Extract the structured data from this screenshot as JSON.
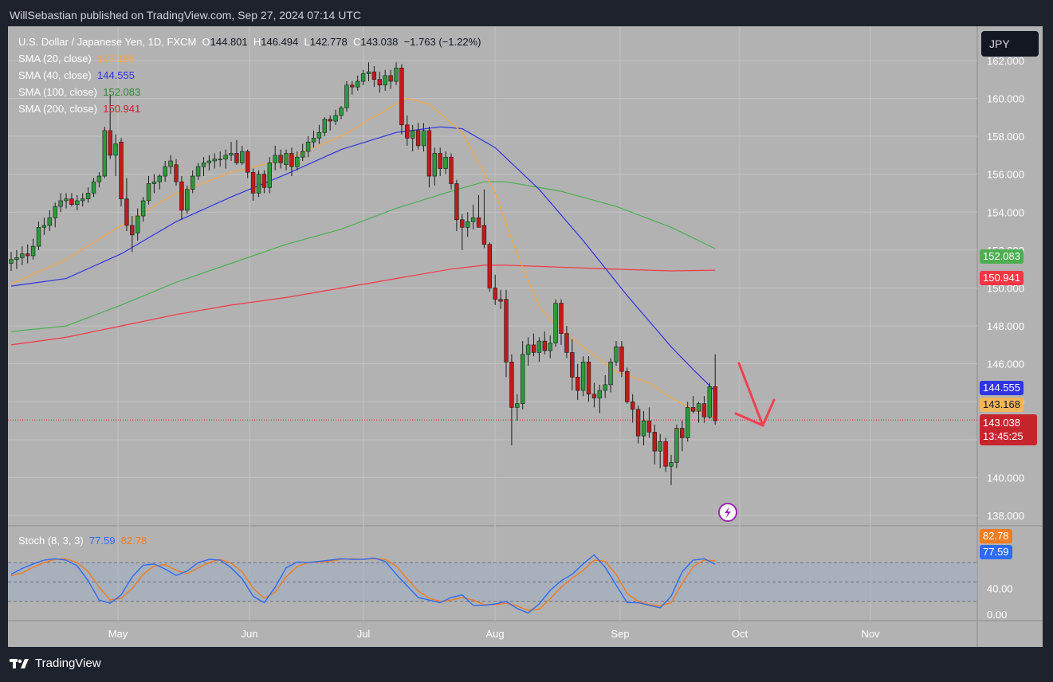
{
  "header": {
    "published": "WillSebastian published on TradingView.com, Sep 27, 2024 07:14 UTC"
  },
  "currency_button": "JPY",
  "legend": {
    "symbol": "U.S. Dollar / Japanese Yen, 1D, FXCM",
    "open_label": "O",
    "open": "144.801",
    "high_label": "H",
    "high": "146.494",
    "low_label": "L",
    "low": "142.778",
    "close_label": "C",
    "close": "143.038",
    "change": "−1.763 (−1.22%)",
    "sma20_label": "SMA (20, close)",
    "sma20": "143.168",
    "sma40_label": "SMA (40, close)",
    "sma40": "144.555",
    "sma100_label": "SMA (100, close)",
    "sma100": "152.083",
    "sma200_label": "SMA (200, close)",
    "sma200": "150.941"
  },
  "stoch": {
    "label": "Stoch (8, 3, 3)",
    "k": "77.59",
    "d": "82.78"
  },
  "price_badges": {
    "sma100": "152.083",
    "sma200": "150.941",
    "sma40": "144.555",
    "sma20": "143.168",
    "last": "143.038",
    "countdown": "13:45:25"
  },
  "footer": {
    "brand": "TradingView"
  },
  "colors": {
    "sma20": "#f5a742",
    "sma40": "#2f35e0",
    "sma100": "#4caf50",
    "sma200": "#f23645",
    "up": "#2e9a3b",
    "down": "#c21a1a",
    "stoch_k": "#2f6bf2",
    "stoch_d": "#f07c1f",
    "arrow": "#f04050"
  },
  "chart_data": {
    "type": "candlestick",
    "y_ticks": [
      "162.000",
      "160.000",
      "158.000",
      "156.000",
      "154.000",
      "152.000",
      "150.000",
      "148.000",
      "146.000",
      "144.000",
      "142.000",
      "140.000",
      "138.000"
    ],
    "ylim": [
      137.5,
      163.8
    ],
    "x_ticks": [
      "May",
      "Jun",
      "Jul",
      "Aug",
      "Sep",
      "Oct",
      "Nov"
    ],
    "candles": [
      [
        151.3,
        151.9,
        150.9,
        151.5
      ],
      [
        151.5,
        152.0,
        151.0,
        151.6
      ],
      [
        151.6,
        152.2,
        151.2,
        151.8
      ],
      [
        151.8,
        152.3,
        151.3,
        151.7
      ],
      [
        151.7,
        152.6,
        151.5,
        152.2
      ],
      [
        152.2,
        153.5,
        152.0,
        153.2
      ],
      [
        153.2,
        153.7,
        152.8,
        153.3
      ],
      [
        153.3,
        154.1,
        153.0,
        153.7
      ],
      [
        153.7,
        154.5,
        153.2,
        154.3
      ],
      [
        154.3,
        155.0,
        154.0,
        154.6
      ],
      [
        154.6,
        155.0,
        154.2,
        154.7
      ],
      [
        154.7,
        155.0,
        154.3,
        154.4
      ],
      [
        154.4,
        154.9,
        154.1,
        154.6
      ],
      [
        154.6,
        155.0,
        154.3,
        154.7
      ],
      [
        154.7,
        155.3,
        154.5,
        155.0
      ],
      [
        155.0,
        155.8,
        154.8,
        155.6
      ],
      [
        155.6,
        156.1,
        155.3,
        155.9
      ],
      [
        155.9,
        158.5,
        155.8,
        158.3
      ],
      [
        158.3,
        160.2,
        156.8,
        157.0
      ],
      [
        157.0,
        158.1,
        155.9,
        157.6
      ],
      [
        157.7,
        157.9,
        154.3,
        154.7
      ],
      [
        154.7,
        155.8,
        153.0,
        153.3
      ],
      [
        153.3,
        153.8,
        151.9,
        152.8
      ],
      [
        152.9,
        154.2,
        152.5,
        153.8
      ],
      [
        153.8,
        154.8,
        153.5,
        154.6
      ],
      [
        154.6,
        155.9,
        154.4,
        155.5
      ],
      [
        155.5,
        156.0,
        155.0,
        155.6
      ],
      [
        155.6,
        156.0,
        155.2,
        155.9
      ],
      [
        155.9,
        156.7,
        155.6,
        156.4
      ],
      [
        156.4,
        157.0,
        156.0,
        156.7
      ],
      [
        156.5,
        156.8,
        155.4,
        155.6
      ],
      [
        155.6,
        155.9,
        153.6,
        154.1
      ],
      [
        154.1,
        155.4,
        153.9,
        155.2
      ],
      [
        155.2,
        156.2,
        155.0,
        155.9
      ],
      [
        155.9,
        156.6,
        155.7,
        156.4
      ],
      [
        156.4,
        156.9,
        155.9,
        156.6
      ],
      [
        156.6,
        157.0,
        156.2,
        156.7
      ],
      [
        156.7,
        157.1,
        156.3,
        156.8
      ],
      [
        156.8,
        157.2,
        156.4,
        156.8
      ],
      [
        156.8,
        157.3,
        156.3,
        157.0
      ],
      [
        157.0,
        157.7,
        156.7,
        157.1
      ],
      [
        157.1,
        157.8,
        156.5,
        156.6
      ],
      [
        156.6,
        157.5,
        156.5,
        157.2
      ],
      [
        157.2,
        157.3,
        155.8,
        156.1
      ],
      [
        156.1,
        156.3,
        154.6,
        155.0
      ],
      [
        155.0,
        156.2,
        154.8,
        156.0
      ],
      [
        156.0,
        156.2,
        155.0,
        155.3
      ],
      [
        155.3,
        156.9,
        155.0,
        156.6
      ],
      [
        156.6,
        157.5,
        156.2,
        157.0
      ],
      [
        157.0,
        157.3,
        156.3,
        156.6
      ],
      [
        156.5,
        157.3,
        156.2,
        157.1
      ],
      [
        157.1,
        157.4,
        155.9,
        156.4
      ],
      [
        156.4,
        157.2,
        156.2,
        156.9
      ],
      [
        156.9,
        157.6,
        156.7,
        157.2
      ],
      [
        157.2,
        158.0,
        156.9,
        157.7
      ],
      [
        157.7,
        158.3,
        157.4,
        157.9
      ],
      [
        157.9,
        158.6,
        157.6,
        158.2
      ],
      [
        158.2,
        159.0,
        158.0,
        158.9
      ],
      [
        158.9,
        159.1,
        158.3,
        158.8
      ],
      [
        158.8,
        159.4,
        158.6,
        159.1
      ],
      [
        159.1,
        159.6,
        158.9,
        159.5
      ],
      [
        159.5,
        160.9,
        159.3,
        160.7
      ],
      [
        160.7,
        160.9,
        160.2,
        160.6
      ],
      [
        160.6,
        161.2,
        160.4,
        160.9
      ],
      [
        160.9,
        161.5,
        160.7,
        161.3
      ],
      [
        161.3,
        161.9,
        160.9,
        161.4
      ],
      [
        161.4,
        161.7,
        160.6,
        161.0
      ],
      [
        161.0,
        161.4,
        160.3,
        160.7
      ],
      [
        160.7,
        161.5,
        160.4,
        161.2
      ],
      [
        161.2,
        161.5,
        160.5,
        160.9
      ],
      [
        160.9,
        161.9,
        160.7,
        161.6
      ],
      [
        161.6,
        161.8,
        158.1,
        158.6
      ],
      [
        158.6,
        159.1,
        157.5,
        157.9
      ],
      [
        157.9,
        158.6,
        157.2,
        158.3
      ],
      [
        158.3,
        158.7,
        157.3,
        157.5
      ],
      [
        157.5,
        158.7,
        157.2,
        158.3
      ],
      [
        158.3,
        158.5,
        155.3,
        155.9
      ],
      [
        155.9,
        157.4,
        155.4,
        157.1
      ],
      [
        157.1,
        157.4,
        155.9,
        156.3
      ],
      [
        156.3,
        157.2,
        156.0,
        156.9
      ],
      [
        156.9,
        157.1,
        155.2,
        155.5
      ],
      [
        155.5,
        155.7,
        153.0,
        153.6
      ],
      [
        153.6,
        153.9,
        152.0,
        153.2
      ],
      [
        153.2,
        154.0,
        152.7,
        153.5
      ],
      [
        153.5,
        154.4,
        153.1,
        153.7
      ],
      [
        153.7,
        154.9,
        153.2,
        153.2
      ],
      [
        153.3,
        155.2,
        152.1,
        152.3
      ],
      [
        152.3,
        152.4,
        149.8,
        150.0
      ],
      [
        150.0,
        150.7,
        149.1,
        149.4
      ],
      [
        149.4,
        149.9,
        148.9,
        149.3
      ],
      [
        149.4,
        149.9,
        145.3,
        146.1
      ],
      [
        146.1,
        146.5,
        141.7,
        143.7
      ],
      [
        143.7,
        144.4,
        143.0,
        143.9
      ],
      [
        143.9,
        147.2,
        143.6,
        146.5
      ],
      [
        146.5,
        147.4,
        145.9,
        147.0
      ],
      [
        147.0,
        147.6,
        146.4,
        146.6
      ],
      [
        146.6,
        147.4,
        146.1,
        147.2
      ],
      [
        147.2,
        147.7,
        146.5,
        146.7
      ],
      [
        146.7,
        147.5,
        146.3,
        147.1
      ],
      [
        147.1,
        149.4,
        146.9,
        149.2
      ],
      [
        149.2,
        149.4,
        147.0,
        147.6
      ],
      [
        147.6,
        148.0,
        146.3,
        146.6
      ],
      [
        146.6,
        147.3,
        144.6,
        145.3
      ],
      [
        145.3,
        146.0,
        144.1,
        144.6
      ],
      [
        144.6,
        146.4,
        144.3,
        146.1
      ],
      [
        146.1,
        146.4,
        144.0,
        144.4
      ],
      [
        144.4,
        145.0,
        143.7,
        144.2
      ],
      [
        144.2,
        144.9,
        143.4,
        144.6
      ],
      [
        144.6,
        145.4,
        144.2,
        144.9
      ],
      [
        144.9,
        146.3,
        144.5,
        146.1
      ],
      [
        146.1,
        147.2,
        145.9,
        146.9
      ],
      [
        146.9,
        147.2,
        145.3,
        145.6
      ],
      [
        145.6,
        145.8,
        143.9,
        144.0
      ],
      [
        144.0,
        144.4,
        142.9,
        143.6
      ],
      [
        143.6,
        143.8,
        141.8,
        142.2
      ],
      [
        142.2,
        143.5,
        141.7,
        143.0
      ],
      [
        143.0,
        143.7,
        142.1,
        142.4
      ],
      [
        142.4,
        142.8,
        140.7,
        141.4
      ],
      [
        141.4,
        142.3,
        140.5,
        141.9
      ],
      [
        141.9,
        142.1,
        140.3,
        140.6
      ],
      [
        140.6,
        141.2,
        139.6,
        140.8
      ],
      [
        140.8,
        142.8,
        140.5,
        142.6
      ],
      [
        142.6,
        143.0,
        141.4,
        142.1
      ],
      [
        142.1,
        144.0,
        141.9,
        143.7
      ],
      [
        143.7,
        144.3,
        143.4,
        143.5
      ],
      [
        143.5,
        144.0,
        142.9,
        143.9
      ],
      [
        143.9,
        144.3,
        142.9,
        143.2
      ],
      [
        143.2,
        145.0,
        143.1,
        144.8
      ],
      [
        144.8,
        146.5,
        142.8,
        143.0
      ]
    ],
    "sma20": [
      [
        0,
        150.2
      ],
      [
        10,
        151.5
      ],
      [
        20,
        153.3
      ],
      [
        30,
        155.0
      ],
      [
        40,
        156.1
      ],
      [
        50,
        156.8
      ],
      [
        60,
        158.0
      ],
      [
        70,
        159.7
      ],
      [
        72,
        160.0
      ],
      [
        76,
        159.7
      ],
      [
        82,
        158.2
      ],
      [
        88,
        155.0
      ],
      [
        92,
        151.8
      ],
      [
        96,
        149.0
      ],
      [
        100,
        147.8
      ],
      [
        104,
        146.9
      ],
      [
        110,
        145.6
      ],
      [
        116,
        145.0
      ],
      [
        120,
        144.2
      ],
      [
        124,
        143.6
      ],
      [
        128,
        143.17
      ]
    ],
    "sma40": [
      [
        0,
        150.1
      ],
      [
        10,
        150.5
      ],
      [
        20,
        151.8
      ],
      [
        30,
        153.5
      ],
      [
        40,
        154.8
      ],
      [
        50,
        156.0
      ],
      [
        60,
        157.3
      ],
      [
        70,
        158.2
      ],
      [
        78,
        158.5
      ],
      [
        82,
        158.4
      ],
      [
        88,
        157.4
      ],
      [
        96,
        155.2
      ],
      [
        104,
        152.5
      ],
      [
        112,
        149.6
      ],
      [
        120,
        146.9
      ],
      [
        124,
        145.7
      ],
      [
        128,
        144.56
      ]
    ],
    "sma100": [
      [
        0,
        147.7
      ],
      [
        10,
        148.0
      ],
      [
        20,
        149.1
      ],
      [
        30,
        150.3
      ],
      [
        40,
        151.3
      ],
      [
        50,
        152.3
      ],
      [
        60,
        153.1
      ],
      [
        70,
        154.2
      ],
      [
        80,
        155.1
      ],
      [
        86,
        155.6
      ],
      [
        90,
        155.6
      ],
      [
        100,
        155.1
      ],
      [
        110,
        154.3
      ],
      [
        120,
        153.2
      ],
      [
        128,
        152.08
      ]
    ],
    "sma200": [
      [
        0,
        147.0
      ],
      [
        10,
        147.4
      ],
      [
        20,
        148.0
      ],
      [
        30,
        148.6
      ],
      [
        40,
        149.1
      ],
      [
        50,
        149.5
      ],
      [
        60,
        150.0
      ],
      [
        70,
        150.5
      ],
      [
        80,
        151.0
      ],
      [
        86,
        151.2
      ],
      [
        90,
        151.2
      ],
      [
        100,
        151.1
      ],
      [
        110,
        150.99
      ],
      [
        120,
        150.9
      ],
      [
        128,
        150.94
      ]
    ],
    "stoch_ylim": [
      0,
      100
    ],
    "stoch_ticks": [
      "40.00",
      "0.00"
    ],
    "stoch_k": [
      [
        0,
        62
      ],
      [
        2,
        71
      ],
      [
        4,
        78
      ],
      [
        6,
        84
      ],
      [
        8,
        86
      ],
      [
        10,
        84
      ],
      [
        12,
        75
      ],
      [
        14,
        52
      ],
      [
        16,
        22
      ],
      [
        18,
        17
      ],
      [
        20,
        30
      ],
      [
        22,
        58
      ],
      [
        24,
        76
      ],
      [
        26,
        78
      ],
      [
        28,
        70
      ],
      [
        30,
        60
      ],
      [
        32,
        67
      ],
      [
        34,
        80
      ],
      [
        36,
        85
      ],
      [
        38,
        84
      ],
      [
        40,
        72
      ],
      [
        42,
        55
      ],
      [
        44,
        28
      ],
      [
        46,
        18
      ],
      [
        48,
        42
      ],
      [
        50,
        72
      ],
      [
        52,
        81
      ],
      [
        54,
        80
      ],
      [
        56,
        82
      ],
      [
        58,
        84
      ],
      [
        60,
        86
      ],
      [
        62,
        85
      ],
      [
        64,
        85
      ],
      [
        66,
        87
      ],
      [
        68,
        82
      ],
      [
        70,
        62
      ],
      [
        72,
        44
      ],
      [
        74,
        26
      ],
      [
        76,
        22
      ],
      [
        78,
        18
      ],
      [
        80,
        26
      ],
      [
        82,
        30
      ],
      [
        84,
        14
      ],
      [
        86,
        14
      ],
      [
        88,
        16
      ],
      [
        90,
        20
      ],
      [
        92,
        9
      ],
      [
        94,
        2
      ],
      [
        96,
        16
      ],
      [
        98,
        37
      ],
      [
        100,
        52
      ],
      [
        102,
        62
      ],
      [
        104,
        78
      ],
      [
        106,
        92
      ],
      [
        108,
        73
      ],
      [
        110,
        45
      ],
      [
        112,
        18
      ],
      [
        114,
        18
      ],
      [
        116,
        14
      ],
      [
        118,
        10
      ],
      [
        120,
        28
      ],
      [
        122,
        66
      ],
      [
        124,
        84
      ],
      [
        126,
        86
      ],
      [
        128,
        77.59
      ]
    ],
    "stoch_d": [
      [
        0,
        60
      ],
      [
        2,
        64
      ],
      [
        4,
        73
      ],
      [
        6,
        80
      ],
      [
        8,
        85
      ],
      [
        10,
        86
      ],
      [
        12,
        80
      ],
      [
        14,
        66
      ],
      [
        16,
        42
      ],
      [
        18,
        22
      ],
      [
        20,
        25
      ],
      [
        22,
        40
      ],
      [
        24,
        62
      ],
      [
        26,
        75
      ],
      [
        28,
        77
      ],
      [
        30,
        68
      ],
      [
        32,
        63
      ],
      [
        34,
        72
      ],
      [
        36,
        80
      ],
      [
        38,
        85
      ],
      [
        40,
        79
      ],
      [
        42,
        66
      ],
      [
        44,
        40
      ],
      [
        46,
        25
      ],
      [
        48,
        34
      ],
      [
        50,
        58
      ],
      [
        52,
        74
      ],
      [
        54,
        80
      ],
      [
        56,
        81
      ],
      [
        58,
        82
      ],
      [
        60,
        85
      ],
      [
        62,
        86
      ],
      [
        64,
        85
      ],
      [
        66,
        86
      ],
      [
        68,
        85
      ],
      [
        70,
        75
      ],
      [
        72,
        55
      ],
      [
        74,
        36
      ],
      [
        76,
        25
      ],
      [
        78,
        20
      ],
      [
        80,
        22
      ],
      [
        82,
        26
      ],
      [
        84,
        22
      ],
      [
        86,
        15
      ],
      [
        88,
        15
      ],
      [
        90,
        17
      ],
      [
        92,
        13
      ],
      [
        94,
        6
      ],
      [
        96,
        8
      ],
      [
        98,
        24
      ],
      [
        100,
        42
      ],
      [
        102,
        56
      ],
      [
        104,
        68
      ],
      [
        106,
        84
      ],
      [
        108,
        82
      ],
      [
        110,
        62
      ],
      [
        112,
        32
      ],
      [
        114,
        20
      ],
      [
        116,
        15
      ],
      [
        118,
        13
      ],
      [
        120,
        18
      ],
      [
        122,
        48
      ],
      [
        124,
        74
      ],
      [
        126,
        84
      ],
      [
        128,
        82.78
      ]
    ]
  }
}
